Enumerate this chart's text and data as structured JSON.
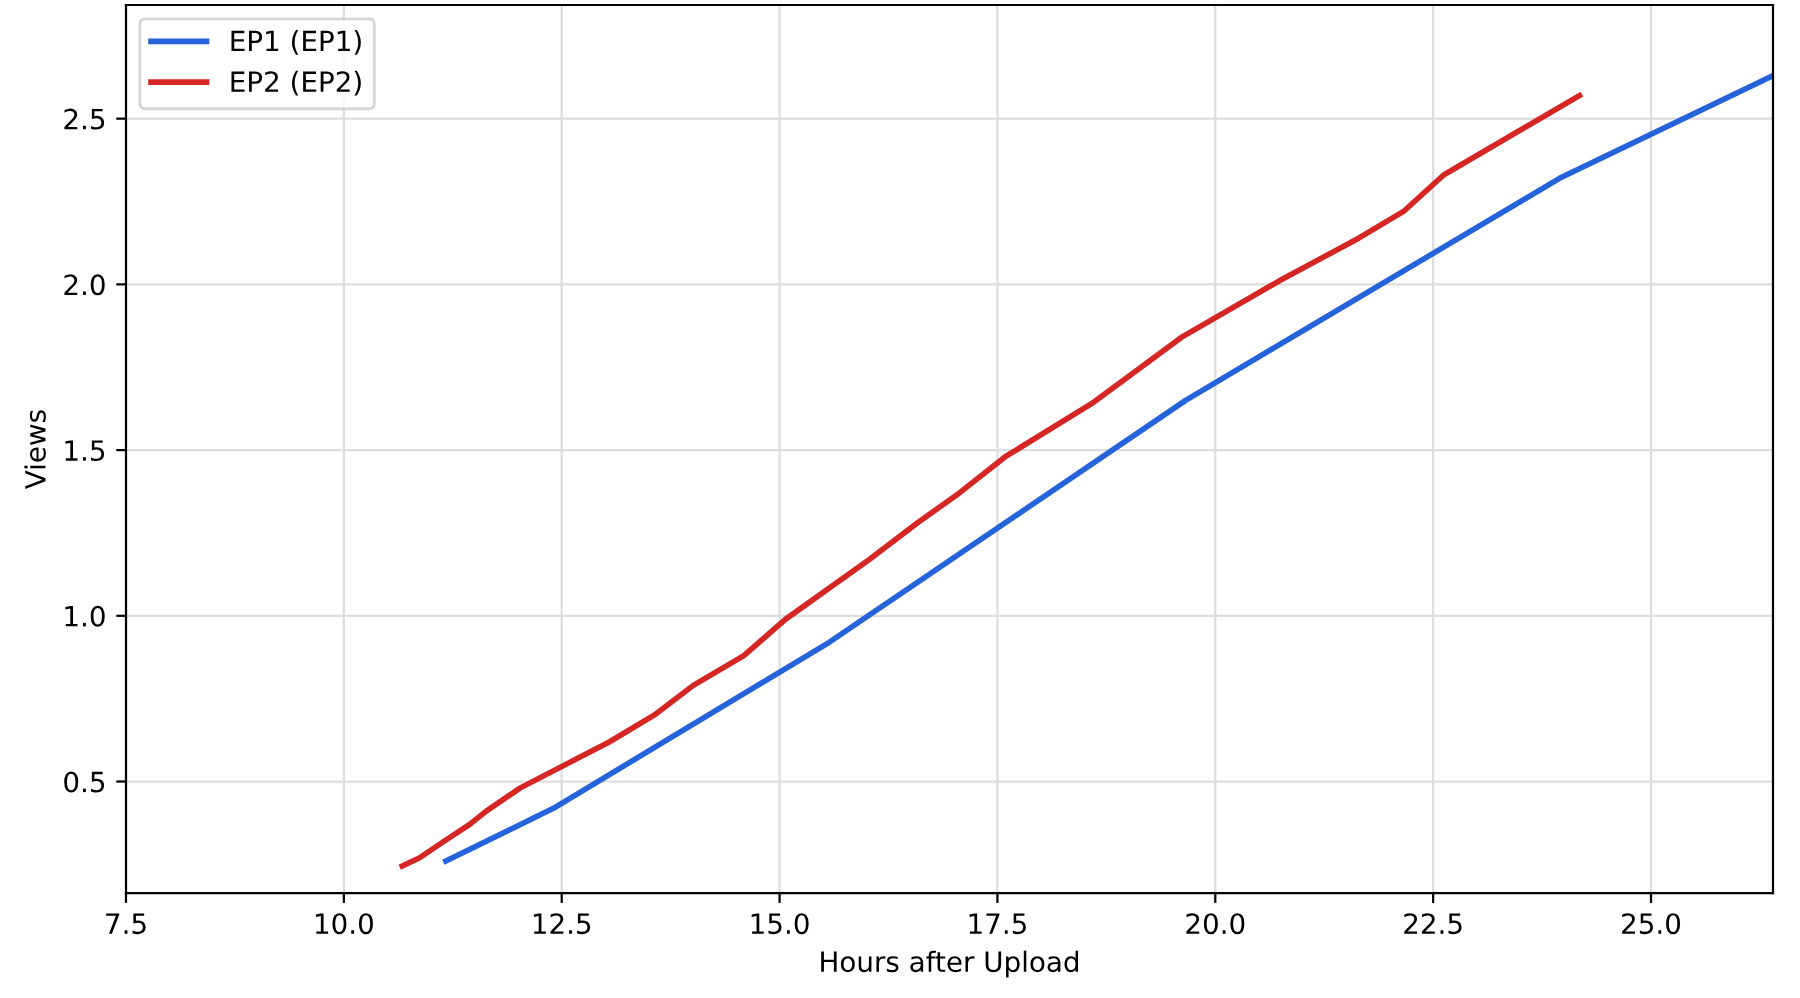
{
  "chart_data": {
    "type": "line",
    "xlabel": "Hours after Upload",
    "ylabel": "Views",
    "xlim": [
      7.5,
      26.4
    ],
    "ylim": [
      0.163,
      2.843
    ],
    "xticks": [
      {
        "value": 7.5,
        "label": "7.5"
      },
      {
        "value": 10.0,
        "label": "10.0"
      },
      {
        "value": 12.5,
        "label": "12.5"
      },
      {
        "value": 15.0,
        "label": "15.0"
      },
      {
        "value": 17.5,
        "label": "17.5"
      },
      {
        "value": 20.0,
        "label": "20.0"
      },
      {
        "value": 22.5,
        "label": "22.5"
      },
      {
        "value": 25.0,
        "label": "25.0"
      }
    ],
    "yticks": [
      0.5,
      {
        "value": 1.0,
        "label": "1.0"
      },
      1.5,
      {
        "value": 2.0,
        "label": "2.0"
      },
      2.5
    ],
    "grid": true,
    "legend": "top left",
    "marker": "none",
    "line_style": "solid",
    "series": [
      {
        "name": "EP1 (EP1)",
        "color": "#2563db",
        "x": [
          11.17,
          12.41,
          15.57,
          19.66,
          23.95,
          26.4
        ],
        "values": [
          0.26,
          0.42,
          0.92,
          1.65,
          2.32,
          2.63
        ]
      },
      {
        "name": "EP2 (EP2)",
        "color": "#d62624",
        "x": [
          10.67,
          10.87,
          11.15,
          11.44,
          11.63,
          12.02,
          13.05,
          13.56,
          14.01,
          14.59,
          15.07,
          16.03,
          16.58,
          17.06,
          17.59,
          18.58,
          19.61,
          20.73,
          21.65,
          22.16,
          22.62,
          24.18
        ],
        "values": [
          0.245,
          0.27,
          0.32,
          0.37,
          0.41,
          0.48,
          0.62,
          0.7,
          0.79,
          0.88,
          0.99,
          1.17,
          1.28,
          1.37,
          1.48,
          1.64,
          1.84,
          2.01,
          2.14,
          2.22,
          2.33,
          2.57
        ]
      }
    ]
  }
}
